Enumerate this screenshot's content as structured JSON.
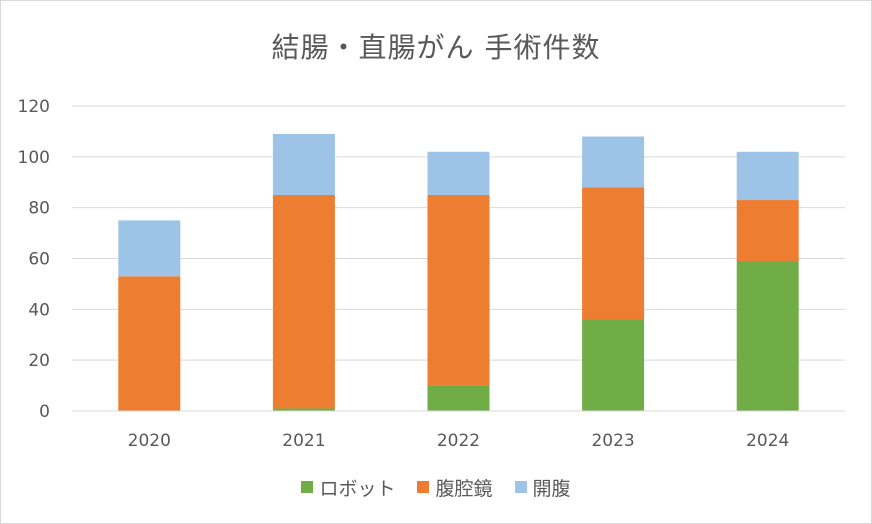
{
  "chart_data": {
    "type": "bar",
    "stacked": true,
    "title": "結腸・直腸がん 手術件数",
    "xlabel": "",
    "ylabel": "",
    "ylim": [
      0,
      120
    ],
    "yticks": [
      "0",
      "20",
      "40",
      "60",
      "80",
      "100",
      "120"
    ],
    "grid": true,
    "legend_position": "bottom",
    "categories": [
      "2020",
      "2021",
      "2022",
      "2023",
      "2024"
    ],
    "series": [
      {
        "name": "ロボット",
        "color": "#70ad47",
        "values": [
          0,
          1,
          10,
          36,
          59
        ]
      },
      {
        "name": "腹腔鏡",
        "color": "#ed7d31",
        "values": [
          53,
          84,
          75,
          52,
          24
        ]
      },
      {
        "name": "開腹",
        "color": "#9dc3e6",
        "values": [
          22,
          24,
          17,
          20,
          19
        ]
      }
    ]
  }
}
